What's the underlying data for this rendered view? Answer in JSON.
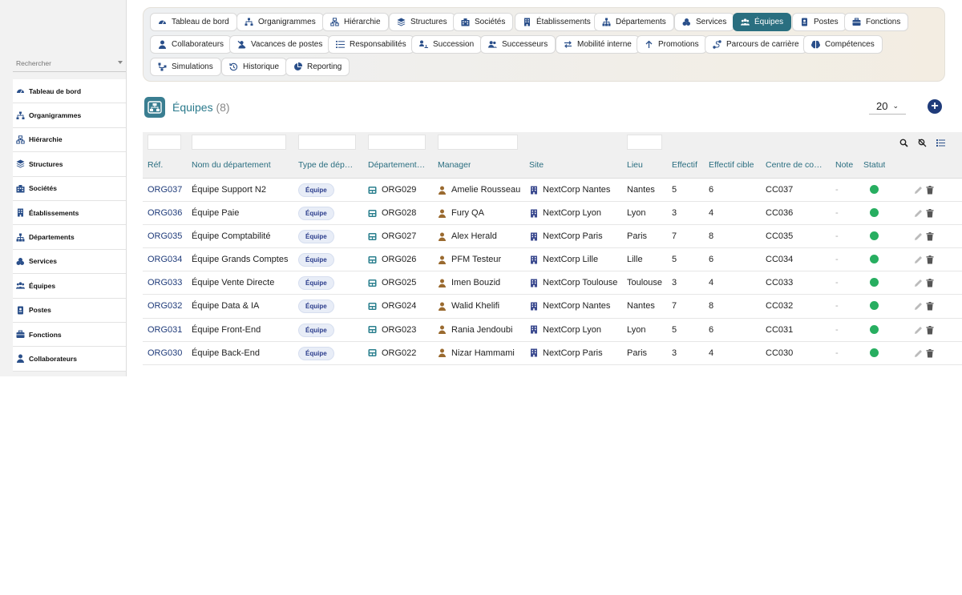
{
  "sidebar": {
    "search_placeholder": "Rechercher",
    "items": [
      {
        "label": "Tableau de bord",
        "icon": "dashboard-icon"
      },
      {
        "label": "Organigrammes",
        "icon": "org-chart-icon"
      },
      {
        "label": "Hiérarchie",
        "icon": "hierarchy-icon"
      },
      {
        "label": "Structures",
        "icon": "layers-icon"
      },
      {
        "label": "Sociétés",
        "icon": "company-icon"
      },
      {
        "label": "Établissements",
        "icon": "building-icon"
      },
      {
        "label": "Départements",
        "icon": "department-icon"
      },
      {
        "label": "Services",
        "icon": "services-icon"
      },
      {
        "label": "Équipes",
        "icon": "team-icon"
      },
      {
        "label": "Postes",
        "icon": "badge-icon"
      },
      {
        "label": "Fonctions",
        "icon": "briefcase-icon"
      },
      {
        "label": "Collaborateurs",
        "icon": "user-icon"
      }
    ]
  },
  "nav": {
    "row1": [
      {
        "label": "Tableau de bord",
        "icon": "dashboard-icon"
      },
      {
        "label": "Organigrammes",
        "icon": "org-chart-icon"
      },
      {
        "label": "Hiérarchie",
        "icon": "hierarchy-icon"
      },
      {
        "label": "Structures",
        "icon": "layers-icon"
      },
      {
        "label": "Sociétés",
        "icon": "company-icon"
      },
      {
        "label": "Établissements",
        "icon": "building-icon"
      },
      {
        "label": "Départements",
        "icon": "department-icon"
      },
      {
        "label": "Services",
        "icon": "services-icon"
      },
      {
        "label": "Équipes",
        "icon": "team-icon",
        "active": true
      },
      {
        "label": "Postes",
        "icon": "badge-icon"
      },
      {
        "label": "Fonctions",
        "icon": "briefcase-icon"
      }
    ],
    "row2": [
      {
        "label": "Collaborateurs",
        "icon": "user-icon"
      },
      {
        "label": "Vacances de postes",
        "icon": "user-slash-icon"
      },
      {
        "label": "Responsabilités",
        "icon": "list-icon"
      },
      {
        "label": "Succession",
        "icon": "succession-icon"
      },
      {
        "label": "Successeurs",
        "icon": "users-icon"
      },
      {
        "label": "Mobilité interne",
        "icon": "swap-icon"
      },
      {
        "label": "Promotions",
        "icon": "arrow-up-icon"
      },
      {
        "label": "Parcours de carrière",
        "icon": "route-icon"
      },
      {
        "label": "Compétences",
        "icon": "brain-icon"
      }
    ],
    "row3": [
      {
        "label": "Simulations",
        "icon": "network-icon"
      },
      {
        "label": "Historique",
        "icon": "history-icon"
      },
      {
        "label": "Reporting",
        "icon": "pie-chart-icon"
      }
    ]
  },
  "header": {
    "title": "Équipes",
    "count": "(8)",
    "page_size": "20",
    "add_label": "+"
  },
  "table": {
    "columns": [
      "Réf.",
      "Nom du département",
      "Type de dép…",
      "Département…",
      "Manager",
      "Site",
      "Lieu",
      "Effectif",
      "Effectif cible",
      "Centre de co…",
      "Note",
      "Statut"
    ],
    "rows": [
      {
        "ref": "ORG037",
        "name": "Équipe Support N2",
        "type": "Équipe",
        "dept": "ORG029",
        "manager": "Amelie Rousseau",
        "site": "NextCorp Nantes",
        "lieu": "Nantes",
        "effectif": "5",
        "cible": "6",
        "centre": "CC037",
        "note": "-"
      },
      {
        "ref": "ORG036",
        "name": "Équipe Paie",
        "type": "Équipe",
        "dept": "ORG028",
        "manager": "Fury QA",
        "site": "NextCorp Lyon",
        "lieu": "Lyon",
        "effectif": "3",
        "cible": "4",
        "centre": "CC036",
        "note": "-"
      },
      {
        "ref": "ORG035",
        "name": "Équipe Comptabilité",
        "type": "Équipe",
        "dept": "ORG027",
        "manager": "Alex Herald",
        "site": "NextCorp Paris",
        "lieu": "Paris",
        "effectif": "7",
        "cible": "8",
        "centre": "CC035",
        "note": "-"
      },
      {
        "ref": "ORG034",
        "name": "Équipe Grands Comptes",
        "type": "Équipe",
        "dept": "ORG026",
        "manager": "PFM Testeur",
        "site": "NextCorp Lille",
        "lieu": "Lille",
        "effectif": "5",
        "cible": "6",
        "centre": "CC034",
        "note": "-"
      },
      {
        "ref": "ORG033",
        "name": "Équipe Vente Directe",
        "type": "Équipe",
        "dept": "ORG025",
        "manager": "Imen Bouzid",
        "site": "NextCorp Toulouse",
        "lieu": "Toulouse",
        "effectif": "3",
        "cible": "4",
        "centre": "CC033",
        "note": "-"
      },
      {
        "ref": "ORG032",
        "name": "Équipe Data & IA",
        "type": "Équipe",
        "dept": "ORG024",
        "manager": "Walid Khelifi",
        "site": "NextCorp Nantes",
        "lieu": "Nantes",
        "effectif": "7",
        "cible": "8",
        "centre": "CC032",
        "note": "-"
      },
      {
        "ref": "ORG031",
        "name": "Équipe Front-End",
        "type": "Équipe",
        "dept": "ORG023",
        "manager": "Rania Jendoubi",
        "site": "NextCorp Lyon",
        "lieu": "Lyon",
        "effectif": "5",
        "cible": "6",
        "centre": "CC031",
        "note": "-"
      },
      {
        "ref": "ORG030",
        "name": "Équipe Back-End",
        "type": "Équipe",
        "dept": "ORG022",
        "manager": "Nizar Hammami",
        "site": "NextCorp Paris",
        "lieu": "Paris",
        "effectif": "3",
        "cible": "4",
        "centre": "CC030",
        "note": "-"
      }
    ]
  },
  "colors": {
    "accent": "#2a6f80",
    "status_active": "#27ae60",
    "ref_link": "#1f3b7a"
  }
}
